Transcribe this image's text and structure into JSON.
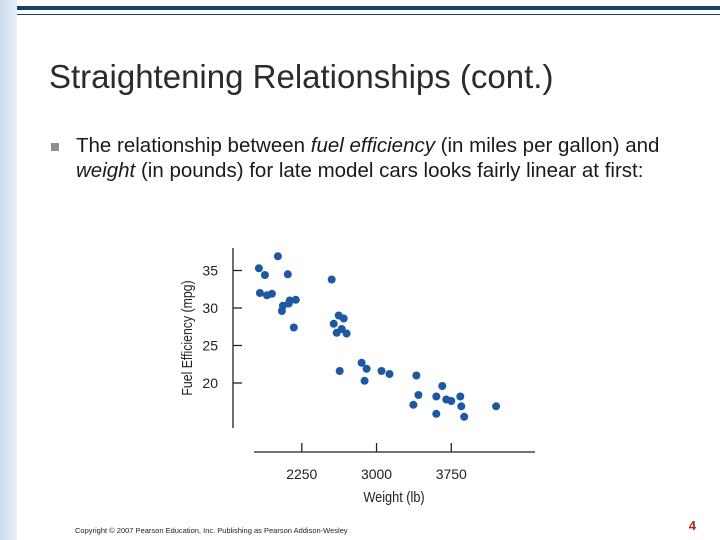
{
  "slide": {
    "title": "Straightening Relationships (cont.)",
    "bullet": {
      "part1": "The relationship between ",
      "term1": "fuel efficiency",
      "part2": " (in miles per gallon) and ",
      "term2": "weight",
      "part3": " (in pounds) for late model cars looks fairly linear at first:"
    },
    "copyright": "Copyright © 2007 Pearson Education, Inc. Publishing as Pearson Addison-Wesley",
    "page_number": "4"
  },
  "colors": {
    "accent": "#15446a",
    "points": "#1f57a3",
    "page_number": "#b3211d"
  },
  "chart_data": {
    "type": "scatter",
    "title": "",
    "xlabel": "Weight (lb)",
    "ylabel": "Fuel Efficiency (mpg)",
    "xlim": [
      1650,
      4600
    ],
    "ylim": [
      14,
      38
    ],
    "xticks": [
      2250,
      3000,
      3750
    ],
    "xtick_labels": [
      "2250",
      "3000",
      "3750"
    ],
    "yticks": [
      20,
      25,
      30,
      35
    ],
    "ytick_labels": [
      "20",
      "25",
      "30",
      "35"
    ],
    "grid": false,
    "series": [
      {
        "x": [
          1820,
          1830,
          1880,
          1900,
          1950,
          2010,
          2050,
          2060,
          2110,
          2120,
          2130,
          2170,
          2190,
          2550,
          2570,
          2600,
          2620,
          2650,
          2670,
          2700,
          2630,
          2850,
          2880,
          2900,
          3050,
          3130,
          3370,
          3400,
          3420,
          3600,
          3600,
          3660,
          3700,
          3750,
          3840,
          3850,
          3880,
          4200
        ],
        "y": [
          35.3,
          32.0,
          34.4,
          31.7,
          31.9,
          36.9,
          29.6,
          30.3,
          34.5,
          30.6,
          31.0,
          27.4,
          31.1,
          33.8,
          27.9,
          26.7,
          29.0,
          27.2,
          28.6,
          26.6,
          21.6,
          22.7,
          20.3,
          21.9,
          21.6,
          21.2,
          17.1,
          21.0,
          18.4,
          15.9,
          18.2,
          19.6,
          17.8,
          17.6,
          18.2,
          16.9,
          15.5,
          16.9
        ]
      }
    ]
  }
}
